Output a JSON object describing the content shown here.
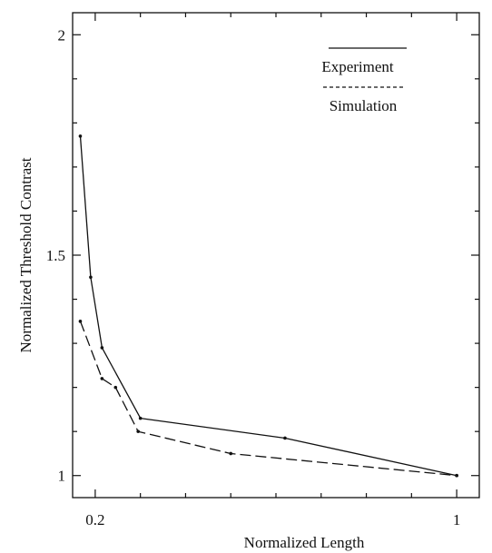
{
  "chart_data": {
    "type": "line",
    "title": "",
    "xlabel": "Normalized Length",
    "ylabel": "Normalized Threshold Contrast",
    "xlim": [
      0.15,
      1.05
    ],
    "ylim": [
      0.95,
      2.05
    ],
    "x_ticks": [
      {
        "value": 0.2,
        "label": "0.2"
      },
      {
        "value": 1,
        "label": "1"
      }
    ],
    "y_ticks": [
      {
        "value": 1,
        "label": "1"
      },
      {
        "value": 1.5,
        "label": "1.5"
      },
      {
        "value": 2,
        "label": "2"
      }
    ],
    "grid": false,
    "legend_position": "top-right",
    "series": [
      {
        "name": "Experiment",
        "line_style": "solid",
        "color": "#111111",
        "x": [
          0.167,
          0.19,
          0.215,
          0.3,
          0.62,
          1.0
        ],
        "y": [
          1.77,
          1.45,
          1.29,
          1.13,
          1.085,
          1.0
        ]
      },
      {
        "name": "Simulation",
        "line_style": "dashed",
        "color": "#111111",
        "x": [
          0.167,
          0.215,
          0.245,
          0.295,
          0.5,
          1.0
        ],
        "y": [
          1.35,
          1.22,
          1.2,
          1.1,
          1.05,
          1.0
        ]
      }
    ]
  }
}
